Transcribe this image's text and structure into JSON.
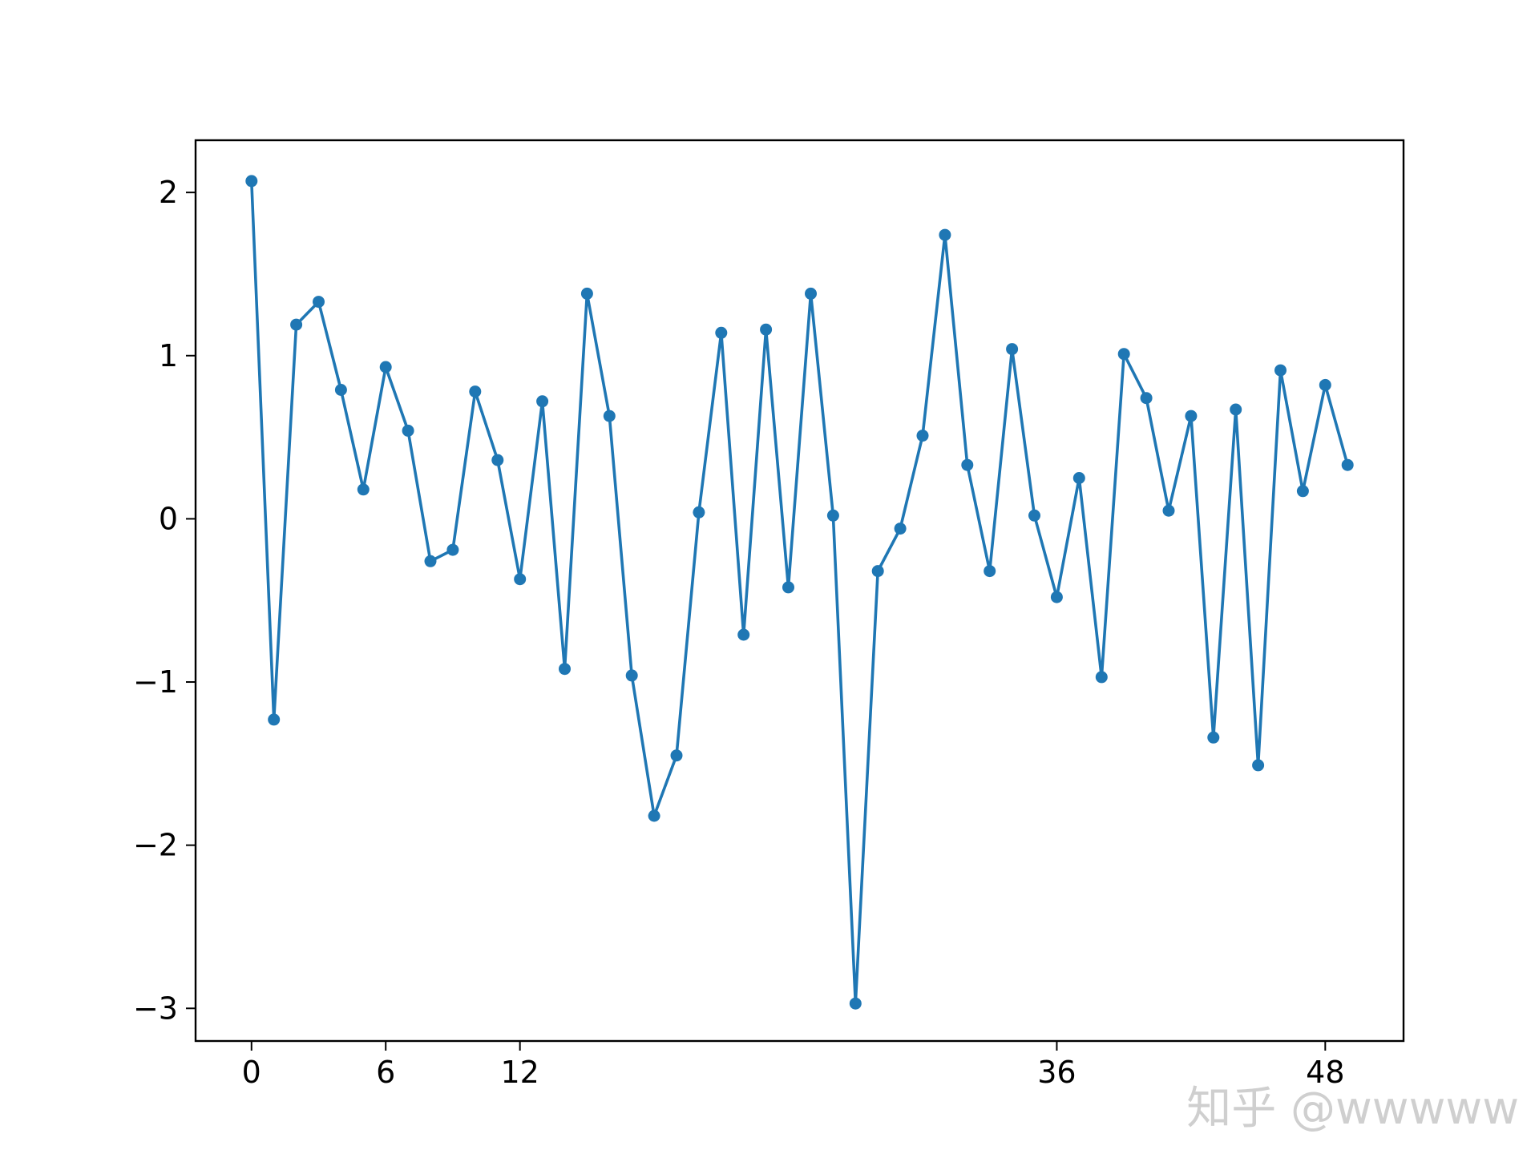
{
  "chart_data": {
    "type": "line",
    "title": "",
    "xlabel": "",
    "ylabel": "",
    "xlim": [
      -2.5,
      51.5
    ],
    "ylim": [
      -3.2,
      2.32
    ],
    "xticks": [
      0,
      6,
      12,
      36,
      48
    ],
    "yticks": [
      -3,
      -2,
      -1,
      0,
      1,
      2
    ],
    "xtick_labels": [
      "0",
      "6",
      "12",
      "36",
      "48"
    ],
    "ytick_labels": [
      "−3",
      "−2",
      "−1",
      "0",
      "1",
      "2"
    ],
    "grid": false,
    "legend": "none",
    "marker": "circle",
    "line_color": "#1f77b4",
    "series": [
      {
        "x": [
          0,
          1,
          2,
          3,
          4,
          5,
          6,
          7,
          8,
          9,
          10,
          11,
          12,
          13,
          14,
          15,
          16,
          17,
          18,
          19,
          20,
          21,
          22,
          23,
          24,
          25,
          26,
          27,
          28,
          29,
          30,
          31,
          32,
          33,
          34,
          35,
          36,
          37,
          38,
          39,
          40,
          41,
          42,
          43,
          44,
          45,
          46,
          47,
          48,
          49
        ],
        "values": [
          2.07,
          -1.23,
          1.19,
          1.33,
          0.79,
          0.18,
          0.93,
          0.54,
          -0.26,
          -0.19,
          0.78,
          0.36,
          -0.37,
          0.72,
          -0.92,
          1.38,
          0.63,
          -0.96,
          -1.82,
          -1.45,
          0.04,
          1.14,
          -0.71,
          1.16,
          -0.42,
          1.38,
          0.02,
          -2.97,
          -0.32,
          -0.06,
          0.51,
          1.74,
          0.33,
          -0.32,
          1.04,
          0.02,
          -0.48,
          0.25,
          -0.97,
          1.01,
          0.74,
          0.05,
          0.63,
          -1.34,
          0.67,
          -1.51,
          0.91,
          0.17,
          0.82,
          0.33
        ]
      }
    ]
  },
  "watermark": {
    "text": "知乎 @wwwww",
    "color": "#cfcfcf"
  }
}
